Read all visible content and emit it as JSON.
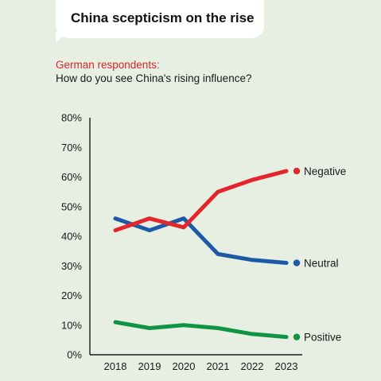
{
  "header": {
    "title": "China scepticism on the rise",
    "subtitle_highlight": "German respondents:",
    "subtitle": "How do you see China's rising influence?"
  },
  "chart_data": {
    "type": "line",
    "title": "China scepticism on the rise",
    "subtitle": "German respondents: How do you see China's rising influence?",
    "x": [
      "2018",
      "2019",
      "2020",
      "2021",
      "2022",
      "2023"
    ],
    "y_ticks": [
      "0%",
      "10%",
      "20%",
      "30%",
      "40%",
      "50%",
      "60%",
      "70%",
      "80%"
    ],
    "ylim": [
      0,
      80
    ],
    "grid": false,
    "legend": "inline-right",
    "series": [
      {
        "name": "Negative",
        "color": "#e3262c",
        "values": [
          42,
          46,
          43,
          55,
          59,
          62
        ]
      },
      {
        "name": "Neutral",
        "color": "#1d5aa6",
        "values": [
          46,
          42,
          46,
          34,
          32,
          31
        ]
      },
      {
        "name": "Positive",
        "color": "#0f9444",
        "values": [
          11,
          9,
          10,
          9,
          7,
          6
        ]
      }
    ]
  }
}
